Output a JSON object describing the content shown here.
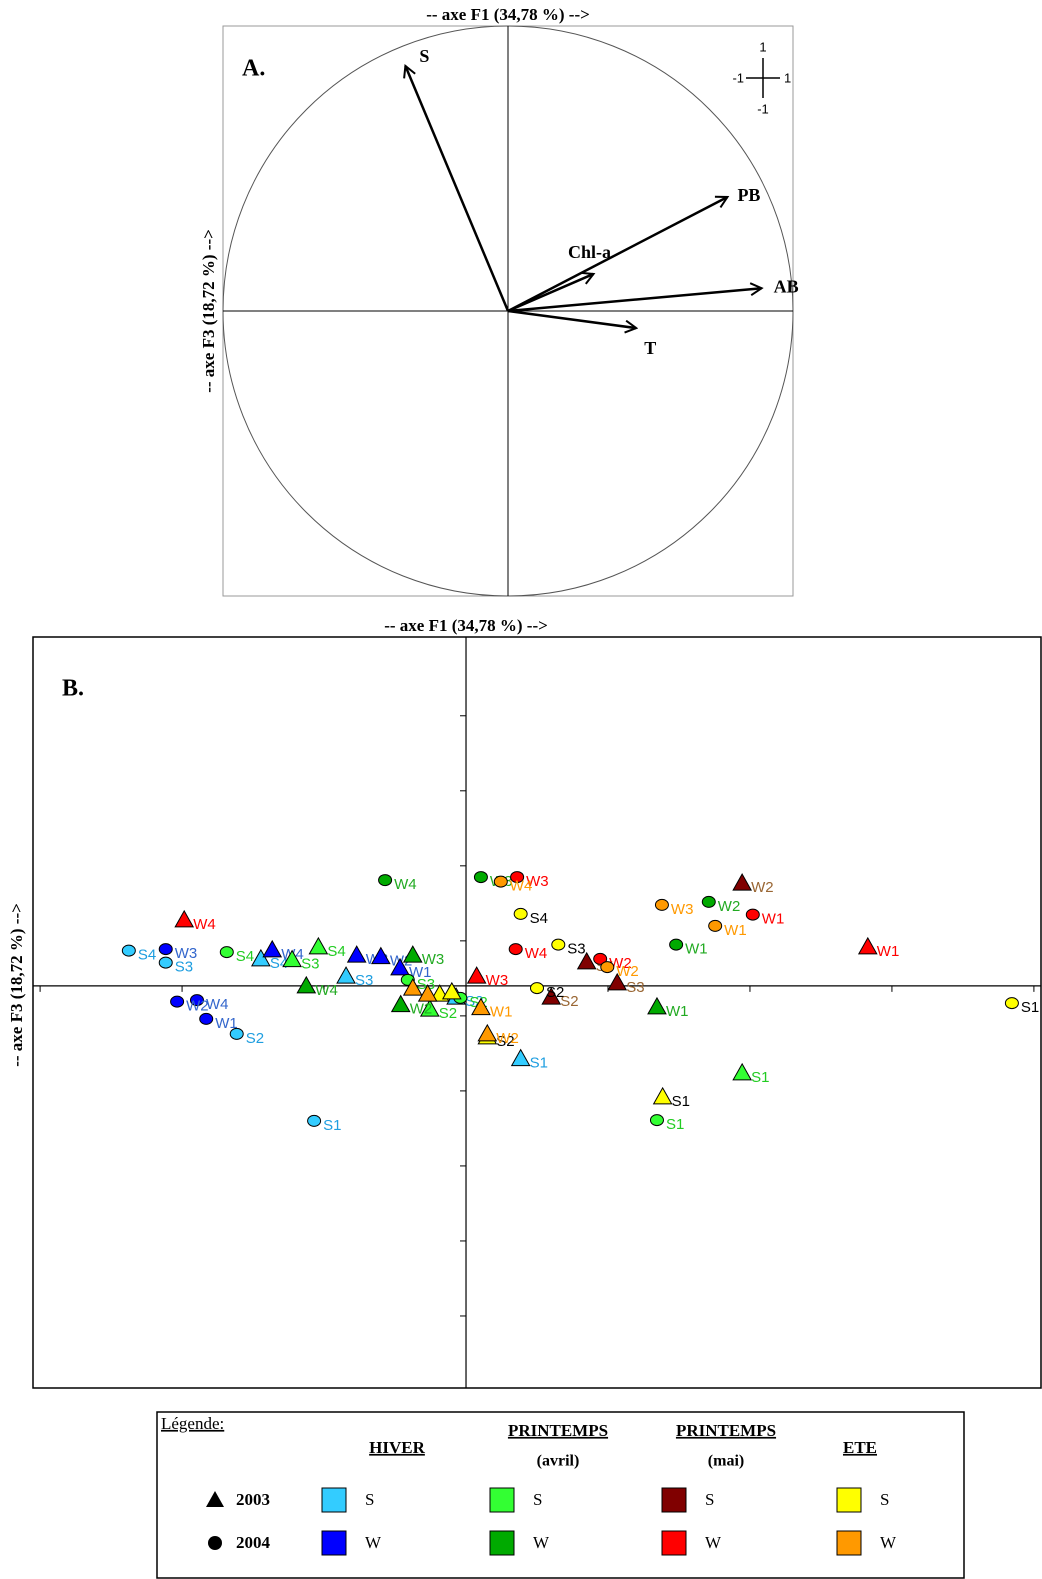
{
  "chart_data": [
    {
      "type": "vector",
      "panel": "A.",
      "title": "-- axe F1 (34,78 %) -->",
      "y_label": "-- axe F3 (18,72 %) -->",
      "xlim": [
        -1,
        1
      ],
      "ylim": [
        -1,
        1
      ],
      "circle": true,
      "series": [
        {
          "labels": [
            "S",
            "PB",
            "Chl-a",
            "AB",
            "T"
          ],
          "x": [
            -0.36,
            0.77,
            0.3,
            0.89,
            0.45
          ],
          "values": [
            0.86,
            0.4,
            0.13,
            0.08,
            -0.06
          ]
        }
      ]
    },
    {
      "type": "scatter",
      "panel": "B.",
      "title": "-- axe F1 (34,78 %) -->",
      "y_label": "-- axe F3 (18,72 %) -->",
      "xlim": [
        -6.1,
        8.1
      ],
      "ylim": [
        -5.36,
        4.65
      ],
      "xticks": [
        -6,
        -4,
        -2,
        2,
        4,
        6,
        8
      ],
      "yticks": [
        3.6,
        2.6,
        1.6,
        0.6,
        -0.4,
        -1.4,
        -2.4,
        -3.4,
        -4.4
      ],
      "legend_title": "Légende:",
      "years": [
        {
          "name": "2003",
          "marker": "triangle"
        },
        {
          "name": "2004",
          "marker": "circle"
        }
      ],
      "series": [
        {
          "name": "HIVER",
          "groups": [
            {
              "name": "S",
              "color": "#33ccff",
              "label_color": "#1e9ee0",
              "years": [
                {
                  "labels": [
                    "S4",
                    "S3",
                    "S2",
                    "S1"
                  ],
                  "x": [
                    -2.89,
                    -1.69,
                    -0.14,
                    0.77
                  ],
                  "values": [
                    0.36,
                    0.13,
                    -0.15,
                    -0.97
                  ]
                },
                {
                  "labels": [
                    "S4",
                    "S3",
                    "S2",
                    "S1"
                  ],
                  "x": [
                    -4.75,
                    -4.23,
                    -3.23,
                    -2.14
                  ],
                  "values": [
                    0.47,
                    0.31,
                    -0.64,
                    -1.8
                  ]
                }
              ]
            },
            {
              "name": "W",
              "color": "#0000ff",
              "label_color": "#3366cc",
              "years": [
                {
                  "labels": [
                    "W4",
                    "W3",
                    "W2",
                    "W1"
                  ],
                  "x": [
                    -2.73,
                    -1.54,
                    -1.2,
                    -0.93
                  ],
                  "values": [
                    0.48,
                    0.41,
                    0.39,
                    0.24
                  ]
                },
                {
                  "labels": [
                    "W3",
                    "W4",
                    "W2",
                    "W1"
                  ],
                  "x": [
                    -4.23,
                    -3.79,
                    -4.07,
                    -3.66
                  ],
                  "values": [
                    0.49,
                    -0.19,
                    -0.21,
                    -0.44
                  ]
                }
              ]
            }
          ]
        },
        {
          "name": "PRINTEMPS",
          "subtitle": "(avril)",
          "groups": [
            {
              "name": "S",
              "color": "#33ff33",
              "label_color": "#22cc22",
              "years": [
                {
                  "labels": [
                    "S4",
                    "S3",
                    "S2",
                    "S1"
                  ],
                  "x": [
                    -2.08,
                    -2.45,
                    -0.51,
                    3.89
                  ],
                  "values": [
                    0.52,
                    0.35,
                    -0.31,
                    -1.16
                  ]
                },
                {
                  "labels": [
                    "S4",
                    "S3",
                    "S2",
                    "S1"
                  ],
                  "x": [
                    -3.37,
                    -0.82,
                    -0.08,
                    2.69
                  ],
                  "values": [
                    0.45,
                    0.08,
                    -0.16,
                    -1.79
                  ]
                }
              ]
            },
            {
              "name": "W",
              "color": "#00aa00",
              "label_color": "#22aa22",
              "years": [
                {
                  "labels": [
                    "W4",
                    "W3",
                    "W2",
                    "W1"
                  ],
                  "x": [
                    -2.25,
                    -0.75,
                    -0.92,
                    2.69
                  ],
                  "values": [
                    0,
                    0.41,
                    -0.25,
                    -0.28
                  ]
                },
                {
                  "labels": [
                    "W4",
                    "W3",
                    "W2",
                    "W1"
                  ],
                  "x": [
                    -1.14,
                    0.21,
                    3.42,
                    2.96
                  ],
                  "values": [
                    1.41,
                    1.45,
                    1.12,
                    0.55
                  ]
                }
              ]
            }
          ]
        },
        {
          "name": "PRINTEMPS",
          "subtitle": "(mai)",
          "groups": [
            {
              "name": "S",
              "color": "#800000",
              "label_color": "#996633",
              "years": [
                {
                  "labels": [
                    "S4",
                    "S3",
                    "S2",
                    "W2"
                  ],
                  "x": [
                    1.7,
                    2.13,
                    1.2,
                    3.89
                  ],
                  "values": [
                    0.32,
                    0.04,
                    -0.15,
                    1.37
                  ]
                },
                {
                  "labels": [],
                  "x": [],
                  "values": []
                }
              ]
            },
            {
              "name": "W",
              "color": "#ff0000",
              "label_color": "#ff0000",
              "years": [
                {
                  "labels": [
                    "W4",
                    "W3",
                    "W1"
                  ],
                  "x": [
                    -3.97,
                    0.15,
                    5.66
                  ],
                  "values": [
                    0.88,
                    0.13,
                    0.52
                  ]
                },
                {
                  "labels": [
                    "W3",
                    "W4",
                    "W2",
                    "W1"
                  ],
                  "x": [
                    0.72,
                    0.7,
                    1.89,
                    4.04
                  ],
                  "values": [
                    1.45,
                    0.49,
                    0.36,
                    0.95
                  ]
                }
              ]
            }
          ]
        },
        {
          "name": "ETE",
          "groups": [
            {
              "name": "S",
              "color": "#ffff00",
              "label_color": "#000000",
              "years": [
                {
                  "labels": [
                    null,
                    null,
                    "S2",
                    "S1"
                  ],
                  "x": [
                    -0.37,
                    -0.2,
                    0.3,
                    2.77
                  ],
                  "values": [
                    -0.11,
                    -0.08,
                    -0.68,
                    -1.48
                  ]
                },
                {
                  "labels": [
                    "S4",
                    "S3",
                    "S2",
                    "S1"
                  ],
                  "x": [
                    0.77,
                    1.3,
                    1.0,
                    7.69
                  ],
                  "values": [
                    0.96,
                    0.55,
                    -0.03,
                    -0.23
                  ]
                }
              ]
            },
            {
              "name": "W",
              "color": "#ff9900",
              "label_color": "#ff9900",
              "years": [
                {
                  "labels": [
                    null,
                    null,
                    "W1",
                    "W2"
                  ],
                  "x": [
                    -0.75,
                    -0.54,
                    0.21,
                    0.3
                  ],
                  "values": [
                    -0.03,
                    -0.11,
                    -0.29,
                    -0.64
                  ]
                },
                {
                  "labels": [
                    "W4",
                    "W3",
                    "W2",
                    "W1"
                  ],
                  "x": [
                    0.49,
                    2.76,
                    1.99,
                    3.51
                  ],
                  "values": [
                    1.39,
                    1.08,
                    0.25,
                    0.8
                  ]
                }
              ]
            }
          ]
        }
      ]
    }
  ]
}
